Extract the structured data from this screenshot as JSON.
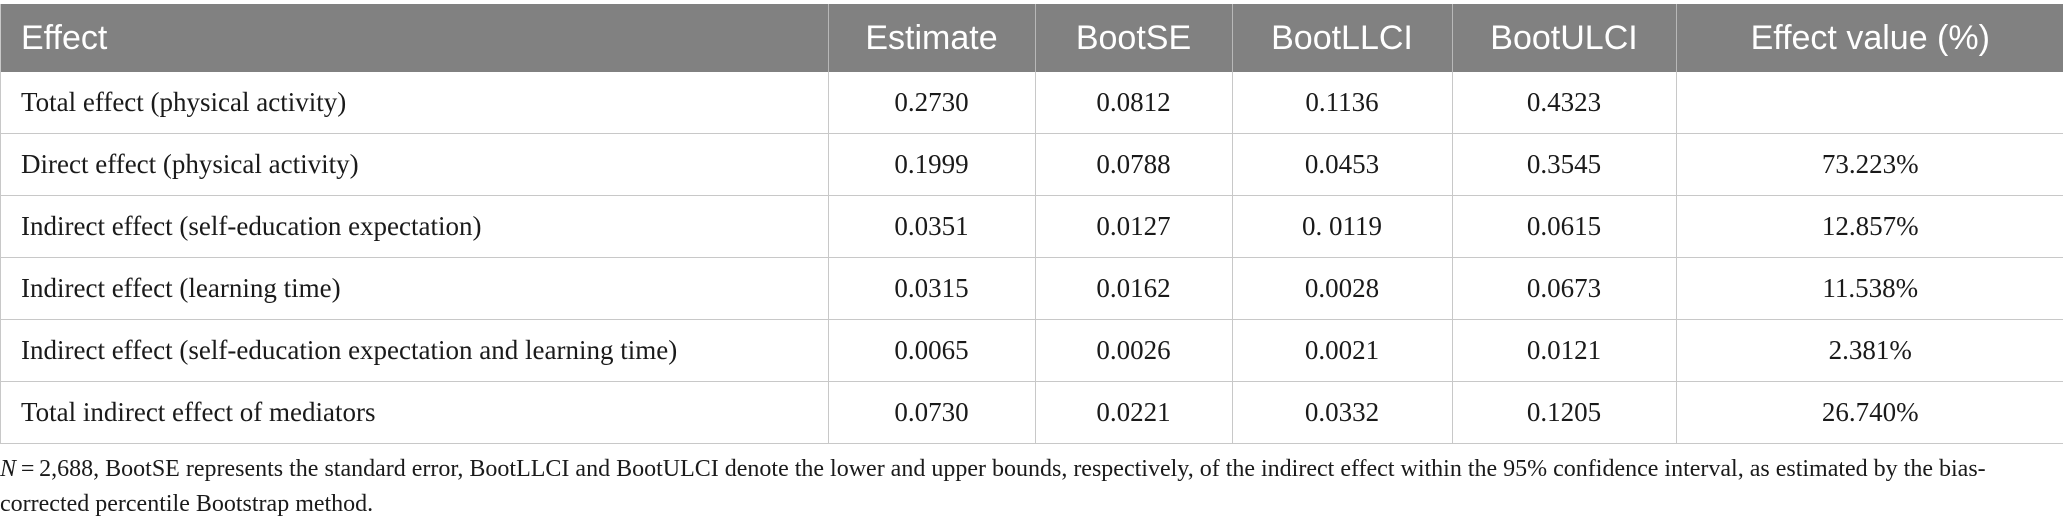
{
  "table": {
    "headers": [
      "Effect",
      "Estimate",
      "BootSE",
      "BootLLCI",
      "BootULCI",
      "Effect value (%)"
    ],
    "rows": [
      [
        "Total effect (physical activity)",
        "0.2730",
        "0.0812",
        "0.1136",
        "0.4323",
        ""
      ],
      [
        "Direct effect (physical activity)",
        "0.1999",
        "0.0788",
        "0.0453",
        "0.3545",
        "73.223%"
      ],
      [
        "Indirect effect (self-education expectation)",
        "0.0351",
        "0.0127",
        "0. 0119",
        "0.0615",
        "12.857%"
      ],
      [
        "Indirect effect (learning time)",
        "0.0315",
        "0.0162",
        "0.0028",
        "0.0673",
        "11.538%"
      ],
      [
        "Indirect effect (self-education expectation and learning time)",
        "0.0065",
        "0.0026",
        "0.0021",
        "0.0121",
        "2.381%"
      ],
      [
        "Total indirect effect of mediators",
        "0.0730",
        "0.0221",
        "0.0332",
        "0.1205",
        "26.740%"
      ]
    ]
  },
  "footnote": {
    "italic_prefix": "N",
    "text": " = 2,688, BootSE represents the standard error, BootLLCI and BootULCI denote the lower and upper bounds, respectively, of the indirect effect within the 95% confidence interval, as estimated by the bias-corrected percentile Bootstrap method."
  },
  "colors": {
    "header_bg": "#818181",
    "header_text": "#ffffff",
    "grid": "#c8c8c8"
  }
}
